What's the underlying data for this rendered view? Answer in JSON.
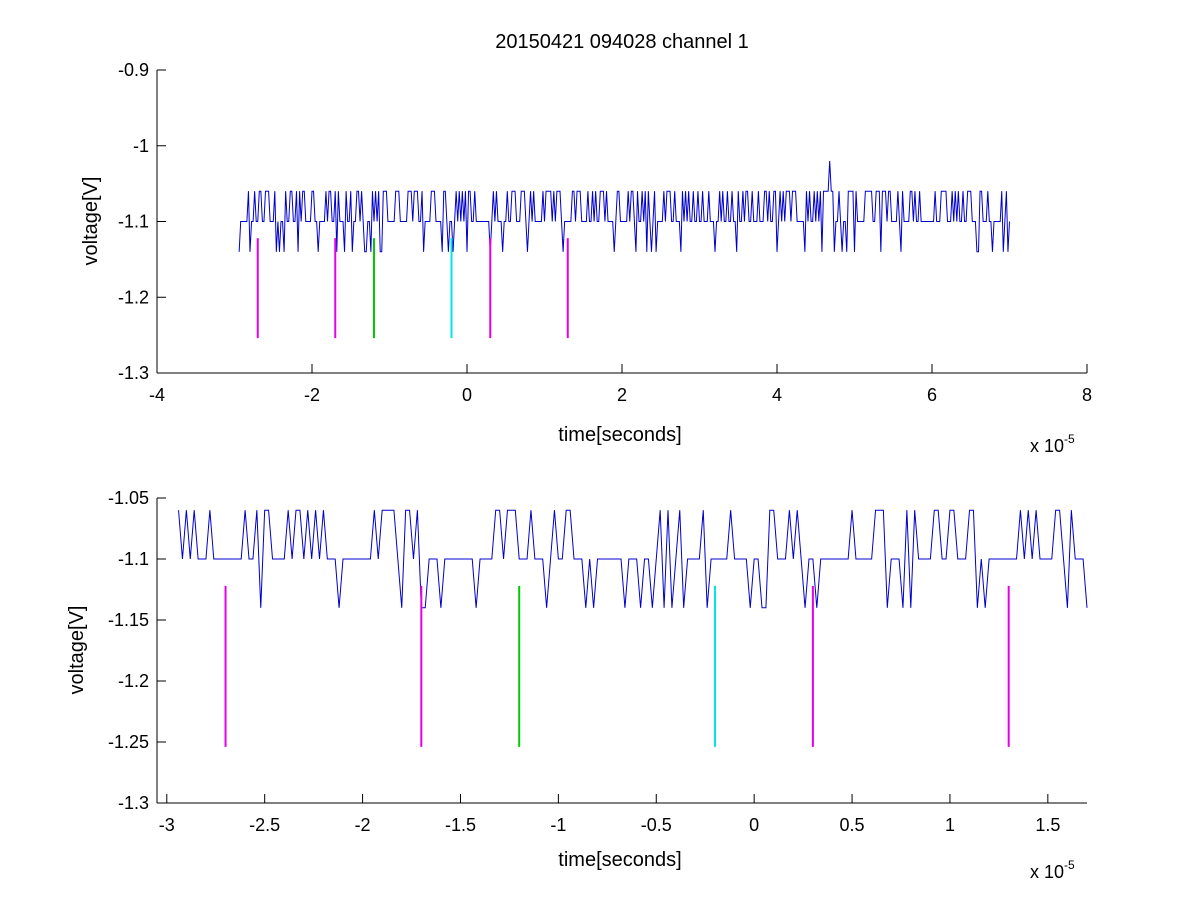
{
  "chart_data": [
    {
      "type": "line",
      "title": "20150421 094028 channel 1",
      "xlabel": "time[seconds]",
      "ylabel": "voltage[V]",
      "xlim": [
        -4,
        8
      ],
      "ylim": [
        -1.3,
        -0.9
      ],
      "x_exponent_label": "x 10",
      "x_exponent": "-5",
      "xtick_values": [
        -4,
        -2,
        0,
        2,
        4,
        6,
        8
      ],
      "xtick_labels": [
        "-4",
        "-2",
        "0",
        "2",
        "4",
        "6",
        "8"
      ],
      "ytick_values": [
        -1.3,
        -1.2,
        -1.1,
        -1.0,
        -0.9
      ],
      "ytick_labels": [
        "-1.3",
        "-1.2",
        "-1.1",
        "-1",
        "-0.9"
      ],
      "grid": false,
      "signal": {
        "color": "#0000cc",
        "x_start": -2.94,
        "x_end": 7.0,
        "baseline": -1.1,
        "levels": [
          -1.06,
          -1.1,
          -1.14
        ],
        "spike": {
          "x": 4.67,
          "y": -1.02
        }
      },
      "markers": [
        {
          "x": -2.7,
          "y_top": -1.122,
          "y_bottom": -1.254,
          "color": "#e600e6"
        },
        {
          "x": -1.7,
          "y_top": -1.122,
          "y_bottom": -1.254,
          "color": "#e600e6"
        },
        {
          "x": -1.2,
          "y_top": -1.122,
          "y_bottom": -1.254,
          "color": "#00cc00"
        },
        {
          "x": -0.2,
          "y_top": -1.122,
          "y_bottom": -1.254,
          "color": "#00e6e6"
        },
        {
          "x": 0.3,
          "y_top": -1.122,
          "y_bottom": -1.254,
          "color": "#e600e6"
        },
        {
          "x": 1.3,
          "y_top": -1.122,
          "y_bottom": -1.254,
          "color": "#e600e6"
        }
      ]
    },
    {
      "type": "line",
      "title": "",
      "xlabel": "time[seconds]",
      "ylabel": "voltage[V]",
      "xlim": [
        -3.05,
        1.7
      ],
      "ylim": [
        -1.3,
        -1.05
      ],
      "x_exponent_label": "x 10",
      "x_exponent": "-5",
      "xtick_values": [
        -3,
        -2.5,
        -2,
        -1.5,
        -1,
        -0.5,
        0,
        0.5,
        1,
        1.5
      ],
      "xtick_labels": [
        "-3",
        "-2.5",
        "-2",
        "-1.5",
        "-1",
        "-0.5",
        "0",
        "0.5",
        "1",
        "1.5"
      ],
      "ytick_values": [
        -1.3,
        -1.25,
        -1.2,
        -1.15,
        -1.1,
        -1.05
      ],
      "ytick_labels": [
        "-1.3",
        "-1.25",
        "-1.2",
        "-1.15",
        "-1.1",
        "-1.05"
      ],
      "grid": false,
      "signal": {
        "color": "#0000cc",
        "x_start": -2.94,
        "x_end": 1.7,
        "baseline": -1.1,
        "levels": [
          -1.06,
          -1.1,
          -1.14
        ]
      },
      "markers": [
        {
          "x": -2.7,
          "y_top": -1.122,
          "y_bottom": -1.254,
          "color": "#e600e6"
        },
        {
          "x": -1.7,
          "y_top": -1.122,
          "y_bottom": -1.254,
          "color": "#e600e6"
        },
        {
          "x": -1.2,
          "y_top": -1.122,
          "y_bottom": -1.254,
          "color": "#00cc00"
        },
        {
          "x": -0.2,
          "y_top": -1.122,
          "y_bottom": -1.254,
          "color": "#00e6e6"
        },
        {
          "x": 0.3,
          "y_top": -1.122,
          "y_bottom": -1.254,
          "color": "#e600e6"
        },
        {
          "x": 1.3,
          "y_top": -1.122,
          "y_bottom": -1.254,
          "color": "#e600e6"
        }
      ]
    }
  ]
}
